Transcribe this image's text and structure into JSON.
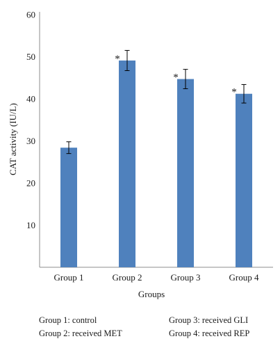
{
  "chart_data": {
    "type": "bar",
    "categories": [
      "Group 1",
      "Group 2",
      "Group 3",
      "Group 4"
    ],
    "values": [
      28.4,
      49.1,
      44.7,
      41.2
    ],
    "error": [
      1.4,
      2.4,
      2.3,
      2.2
    ],
    "significance": [
      "",
      "*",
      "*",
      "*"
    ],
    "xlabel": "Groups",
    "ylabel": "CAT activity (IU/L)",
    "ylim": [
      0,
      60
    ],
    "yticks": [
      "",
      "10",
      "20",
      "30",
      "40",
      "50",
      "60"
    ],
    "grid": false,
    "legend_position": "bottom",
    "bar_color": "#4f81bd"
  },
  "legend_notes": [
    "Group 1: control",
    "Group 2: received MET",
    "Group 3: received GLI",
    "Group 4: received REP"
  ]
}
